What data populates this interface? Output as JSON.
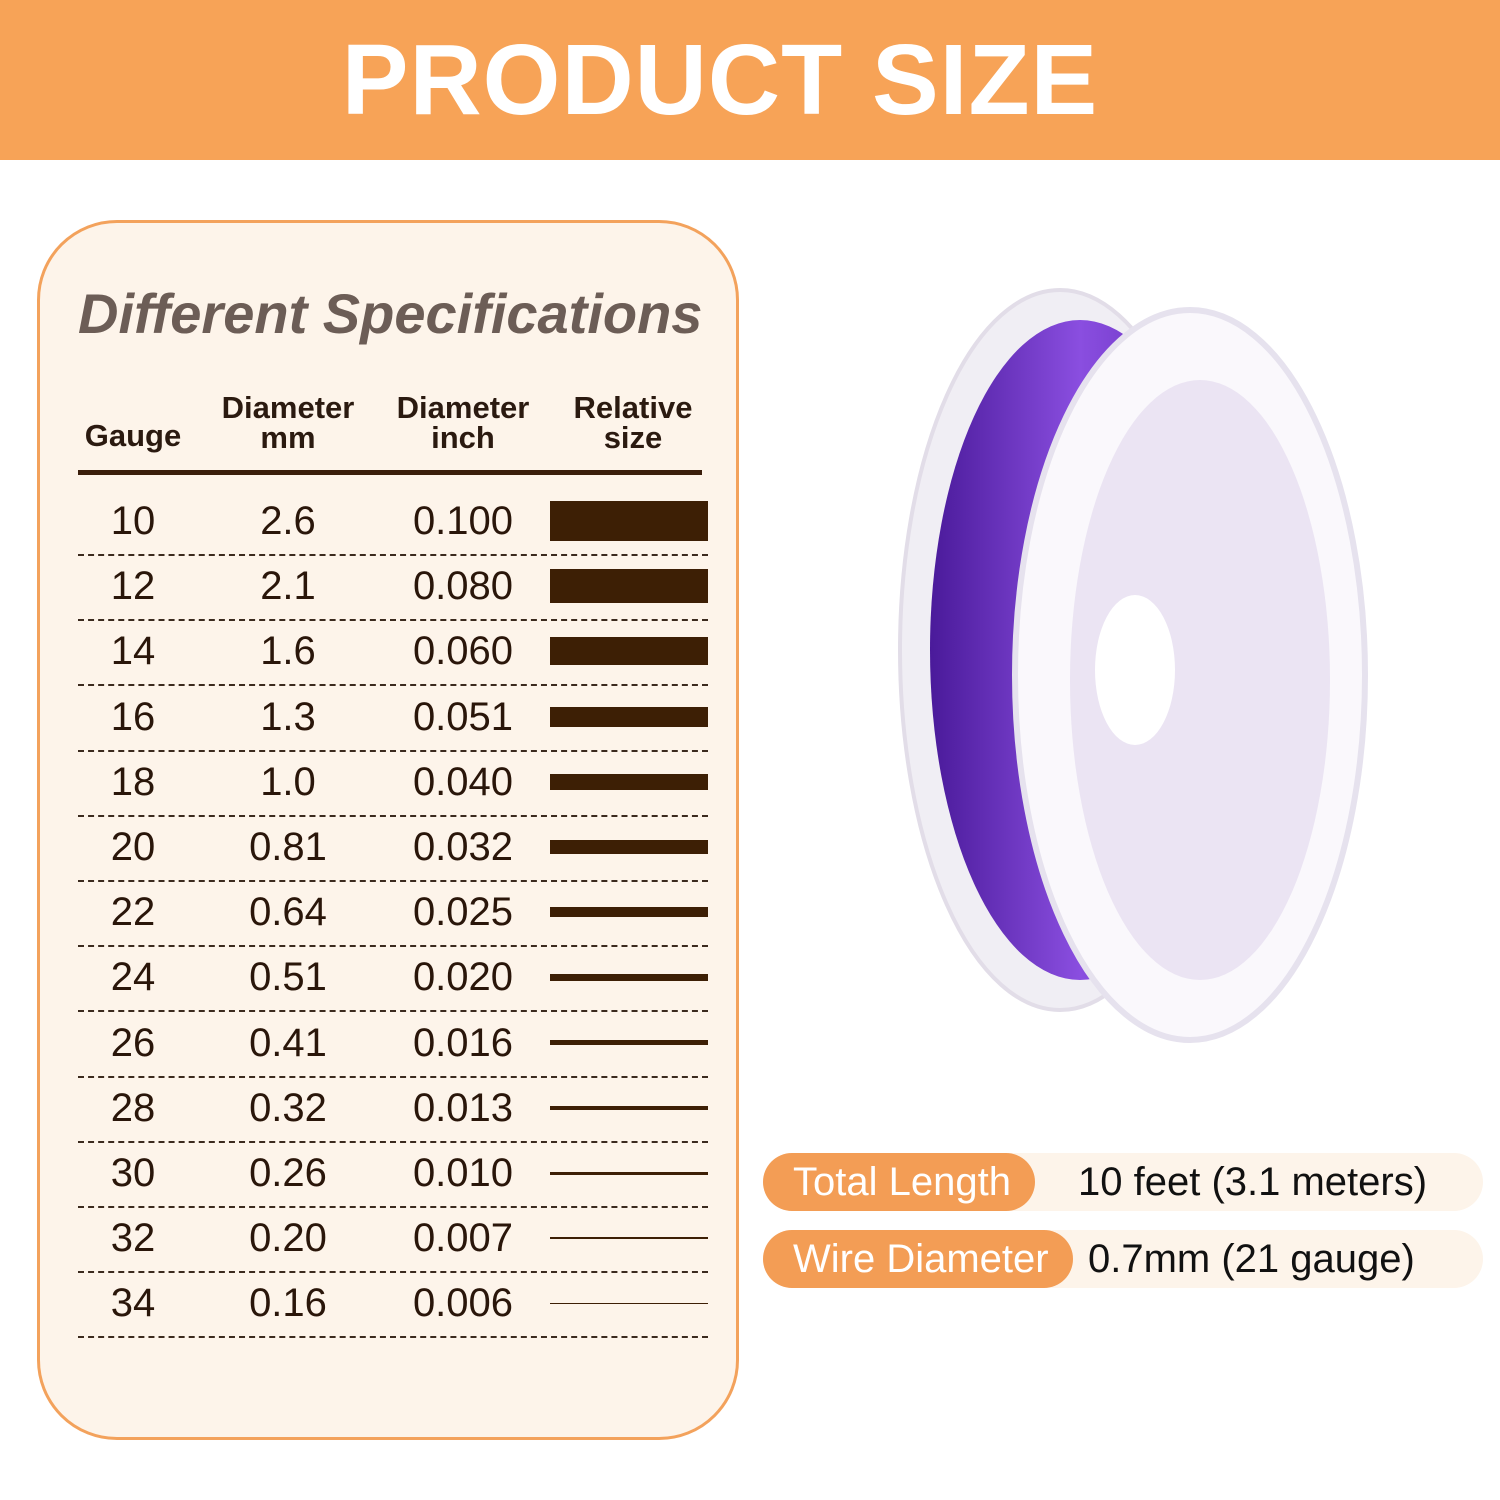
{
  "banner": {
    "title": "PRODUCT SIZE"
  },
  "card": {
    "title": "Different Specifications",
    "headers": [
      [
        "Gauge",
        ""
      ],
      [
        "Diameter",
        "mm"
      ],
      [
        "Diameter",
        "inch"
      ],
      [
        "Relative",
        "size"
      ]
    ],
    "rows": [
      {
        "gauge": "10",
        "mm": "2.6",
        "inch": "0.100"
      },
      {
        "gauge": "12",
        "mm": "2.1",
        "inch": "0.080"
      },
      {
        "gauge": "14",
        "mm": "1.6",
        "inch": "0.060"
      },
      {
        "gauge": "16",
        "mm": "1.3",
        "inch": "0.051"
      },
      {
        "gauge": "18",
        "mm": "1.0",
        "inch": "0.040"
      },
      {
        "gauge": "20",
        "mm": "0.81",
        "inch": "0.032"
      },
      {
        "gauge": "22",
        "mm": "0.64",
        "inch": "0.025"
      },
      {
        "gauge": "24",
        "mm": "0.51",
        "inch": "0.020"
      },
      {
        "gauge": "26",
        "mm": "0.41",
        "inch": "0.016"
      },
      {
        "gauge": "28",
        "mm": "0.32",
        "inch": "0.013"
      },
      {
        "gauge": "30",
        "mm": "0.26",
        "inch": "0.010"
      },
      {
        "gauge": "32",
        "mm": "0.20",
        "inch": "0.007"
      },
      {
        "gauge": "34",
        "mm": "0.16",
        "inch": "0.006"
      }
    ]
  },
  "specs": [
    {
      "label": "Total Length",
      "value": "10 feet (3.1 meters)"
    },
    {
      "label": "Wire Diameter",
      "value": "0.7mm (21 gauge)"
    }
  ],
  "colors": {
    "accent": "#f7a357",
    "bar": "#3d1f05",
    "wire": "#6a2fc0",
    "card_bg": "#fdf4ea"
  }
}
